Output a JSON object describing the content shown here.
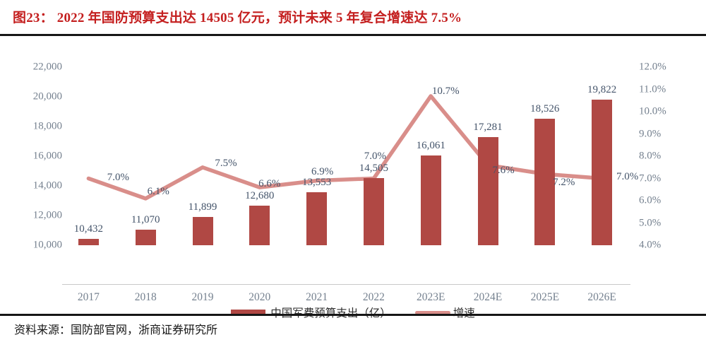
{
  "header": {
    "title": "图23：  2022 年国防预算支出达 14505 亿元，预计未来 5 年复合增速达 7.5%"
  },
  "chart_data": {
    "type": "bar+line",
    "categories": [
      "2017",
      "2018",
      "2019",
      "2020",
      "2021",
      "2022",
      "2023E",
      "2024E",
      "2025E",
      "2026E"
    ],
    "series": [
      {
        "name": "中国军费预算支出（亿）",
        "type": "bar",
        "axis": "left",
        "values": [
          10432,
          11070,
          11899,
          12680,
          13553,
          14505,
          16061,
          17281,
          18526,
          19822
        ],
        "labels": [
          "10,432",
          "11,070",
          "11,899",
          "12,680",
          "13,553",
          "14,505",
          "16,061",
          "17,281",
          "18,526",
          "19,822"
        ],
        "color": "#B04844"
      },
      {
        "name": "增速",
        "type": "line",
        "axis": "right",
        "values": [
          7.0,
          6.1,
          7.5,
          6.6,
          6.9,
          7.0,
          10.7,
          7.6,
          7.2,
          7.0
        ],
        "labels": [
          "7.0%",
          "6.1%",
          "7.5%",
          "6.6%",
          "6.9%",
          "7.0%",
          "10.7%",
          "7.6%",
          "7.2%",
          "7.0%"
        ],
        "color": "#D98E8A"
      }
    ],
    "left_axis": {
      "min": 10000,
      "max": 22000,
      "ticks": [
        "22,000",
        "20,000",
        "18,000",
        "16,000",
        "14,000",
        "12,000",
        "10,000"
      ]
    },
    "right_axis": {
      "min": 4,
      "max": 12,
      "ticks": [
        "12.0%",
        "11.0%",
        "10.0%",
        "9.0%",
        "8.0%",
        "7.0%",
        "6.0%",
        "5.0%",
        "4.0%"
      ]
    },
    "grid": false,
    "legend_position": "bottom"
  },
  "legend": {
    "bar_label": "中国军费预算支出（亿）",
    "line_label": "增速"
  },
  "footer": {
    "source": "资料来源：国防部官网，浙商证券研究所"
  },
  "colors": {
    "bar": "#B04844",
    "line": "#D98E8A",
    "title_red": "#C41F1F",
    "data_label": "#44546A",
    "axis_label": "#75818F"
  }
}
